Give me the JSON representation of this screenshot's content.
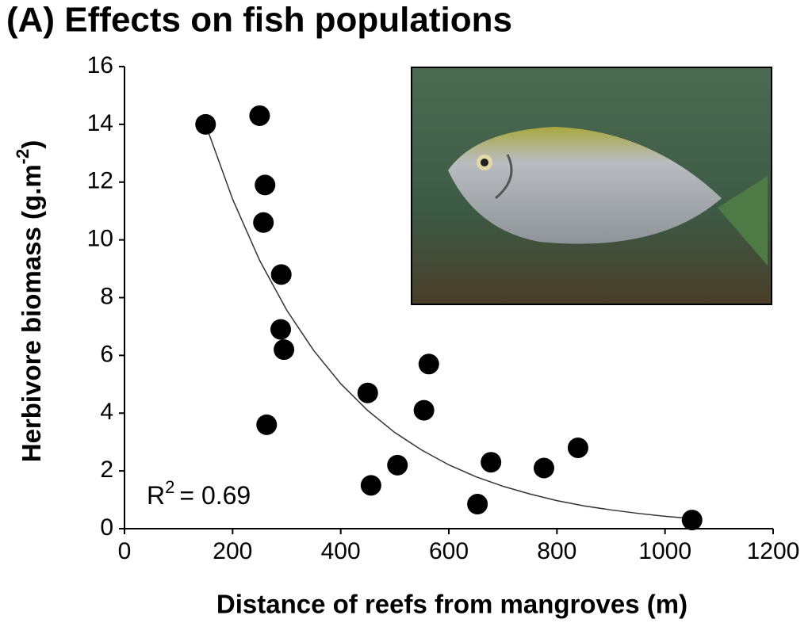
{
  "chart_data": {
    "type": "scatter",
    "title": "(A) Effects on fish populations",
    "xlabel": "Distance of reefs from mangroves (m)",
    "ylabel": {
      "text": "Herbivore biomass (g.m",
      "sup": "-2",
      "end": ")"
    },
    "annotation": {
      "text": "R",
      "sup": "2",
      "rest": "= 0.69"
    },
    "x": [
      150,
      250,
      260,
      257,
      290,
      289,
      295,
      263,
      450,
      456,
      505,
      563,
      554,
      653,
      678,
      776,
      839,
      1050
    ],
    "values": [
      14.0,
      14.3,
      11.9,
      10.6,
      8.8,
      6.9,
      6.2,
      3.6,
      4.7,
      1.5,
      2.2,
      5.7,
      4.1,
      0.85,
      2.3,
      2.1,
      2.8,
      0.3
    ],
    "color": "#000000",
    "fit": {
      "x": [
        150,
        200,
        250,
        300,
        350,
        400,
        450,
        500,
        550,
        600,
        650,
        700,
        750,
        800,
        850,
        900,
        950,
        1000,
        1050
      ],
      "values": [
        14.0,
        11.41,
        9.29,
        7.57,
        6.17,
        5.02,
        4.09,
        3.33,
        2.72,
        2.21,
        1.8,
        1.47,
        1.2,
        0.97,
        0.79,
        0.65,
        0.53,
        0.43,
        0.35
      ],
      "color": "#333333"
    },
    "xlim": [
      0,
      1200
    ],
    "xticks": [
      0,
      200,
      400,
      600,
      800,
      1000,
      1200
    ],
    "ylim": [
      0,
      16
    ],
    "yticks": [
      0,
      2,
      4,
      6,
      8,
      10,
      12,
      14,
      16
    ]
  }
}
